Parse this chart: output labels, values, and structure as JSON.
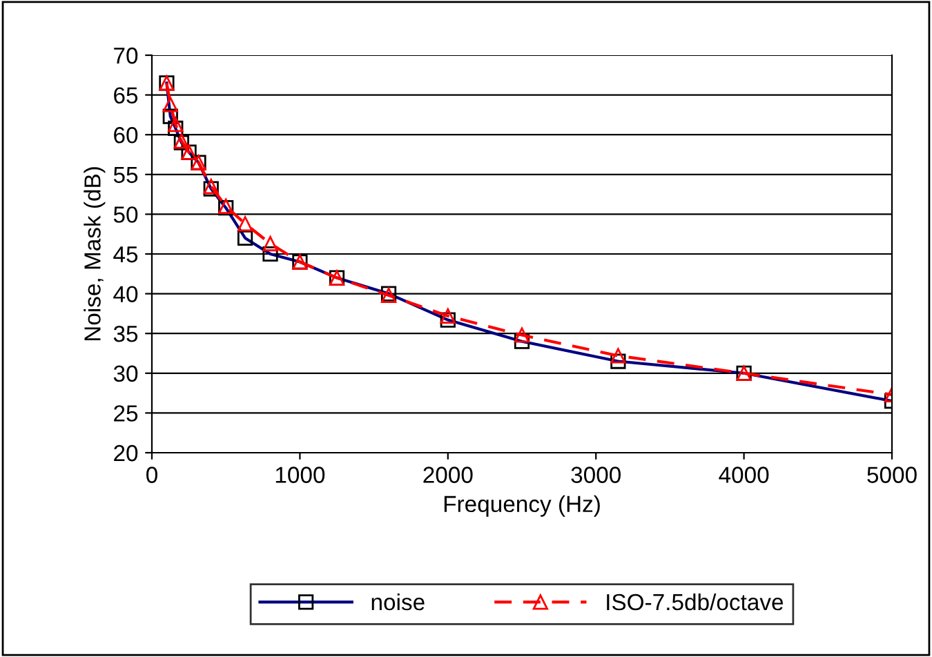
{
  "chart_data": {
    "type": "line",
    "xlabel": "Frequency (Hz)",
    "ylabel": "Noise, Mask (dB)",
    "xlim": [
      0,
      5000
    ],
    "xticks": [
      0,
      1000,
      2000,
      3000,
      4000,
      5000
    ],
    "ylim": [
      20,
      70
    ],
    "yticks": [
      20,
      25,
      30,
      35,
      40,
      45,
      50,
      55,
      60,
      65,
      70
    ],
    "grid": "y",
    "legend": "bottom",
    "series": [
      {
        "name": "noise",
        "color": "#000080",
        "marker": "square",
        "line_style": "solid",
        "x": [
          100,
          125,
          160,
          200,
          250,
          315,
          400,
          500,
          630,
          800,
          1000,
          1250,
          1600,
          2000,
          2500,
          3150,
          4000,
          5000
        ],
        "values": [
          66.5,
          62.3,
          60.8,
          59,
          57.8,
          56.5,
          53.2,
          50.8,
          47,
          45,
          44,
          42,
          40,
          36.7,
          34,
          31.5,
          30,
          26.5
        ]
      },
      {
        "name": "ISO-7.5db/octave",
        "color": "#ff0000",
        "marker": "triangle",
        "line_style": "dashed",
        "x": [
          100,
          125,
          160,
          200,
          250,
          315,
          400,
          500,
          630,
          800,
          1000,
          1250,
          1600,
          2000,
          2500,
          3150,
          4000,
          5000
        ],
        "values": [
          66.5,
          63.8,
          61.3,
          59.2,
          57.8,
          56.5,
          53.5,
          51,
          48.8,
          46.3,
          44,
          42,
          39.8,
          37.2,
          34.8,
          32.2,
          30,
          27.3
        ]
      }
    ]
  }
}
